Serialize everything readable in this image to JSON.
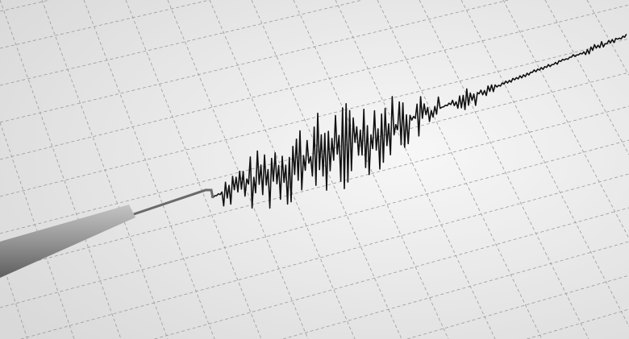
{
  "scene": {
    "subject": "seismograph",
    "colors": {
      "paper_light": "#f7f7f7",
      "paper_dark": "#dcdcdc",
      "grid": "#9a9a9a",
      "trace": "#111111",
      "pen": "#8c8c8c"
    }
  }
}
